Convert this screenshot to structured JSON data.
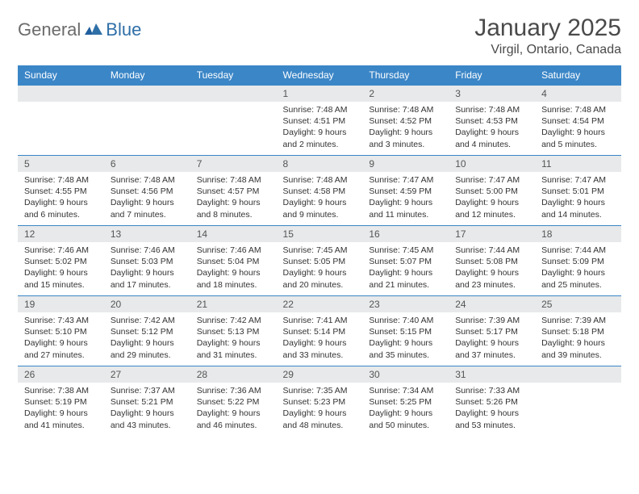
{
  "brand": {
    "part1": "General",
    "part2": "Blue"
  },
  "title": "January 2025",
  "location": "Virgil, Ontario, Canada",
  "colors": {
    "header_bg": "#3b86c7",
    "header_text": "#ffffff",
    "daynum_bg": "#e7e9ea",
    "rule": "#3b86c7",
    "logo_gray": "#6b6b6b",
    "logo_blue": "#2f6fa7"
  },
  "typography": {
    "title_fontsize": 30,
    "location_fontsize": 16,
    "header_fontsize": 12,
    "daynum_fontsize": 12,
    "cell_fontsize": 10.5
  },
  "day_headers": [
    "Sunday",
    "Monday",
    "Tuesday",
    "Wednesday",
    "Thursday",
    "Friday",
    "Saturday"
  ],
  "weeks": [
    [
      null,
      null,
      null,
      {
        "n": "1",
        "sr": "7:48 AM",
        "ss": "4:51 PM",
        "dl": "9 hours and 2 minutes."
      },
      {
        "n": "2",
        "sr": "7:48 AM",
        "ss": "4:52 PM",
        "dl": "9 hours and 3 minutes."
      },
      {
        "n": "3",
        "sr": "7:48 AM",
        "ss": "4:53 PM",
        "dl": "9 hours and 4 minutes."
      },
      {
        "n": "4",
        "sr": "7:48 AM",
        "ss": "4:54 PM",
        "dl": "9 hours and 5 minutes."
      }
    ],
    [
      {
        "n": "5",
        "sr": "7:48 AM",
        "ss": "4:55 PM",
        "dl": "9 hours and 6 minutes."
      },
      {
        "n": "6",
        "sr": "7:48 AM",
        "ss": "4:56 PM",
        "dl": "9 hours and 7 minutes."
      },
      {
        "n": "7",
        "sr": "7:48 AM",
        "ss": "4:57 PM",
        "dl": "9 hours and 8 minutes."
      },
      {
        "n": "8",
        "sr": "7:48 AM",
        "ss": "4:58 PM",
        "dl": "9 hours and 9 minutes."
      },
      {
        "n": "9",
        "sr": "7:47 AM",
        "ss": "4:59 PM",
        "dl": "9 hours and 11 minutes."
      },
      {
        "n": "10",
        "sr": "7:47 AM",
        "ss": "5:00 PM",
        "dl": "9 hours and 12 minutes."
      },
      {
        "n": "11",
        "sr": "7:47 AM",
        "ss": "5:01 PM",
        "dl": "9 hours and 14 minutes."
      }
    ],
    [
      {
        "n": "12",
        "sr": "7:46 AM",
        "ss": "5:02 PM",
        "dl": "9 hours and 15 minutes."
      },
      {
        "n": "13",
        "sr": "7:46 AM",
        "ss": "5:03 PM",
        "dl": "9 hours and 17 minutes."
      },
      {
        "n": "14",
        "sr": "7:46 AM",
        "ss": "5:04 PM",
        "dl": "9 hours and 18 minutes."
      },
      {
        "n": "15",
        "sr": "7:45 AM",
        "ss": "5:05 PM",
        "dl": "9 hours and 20 minutes."
      },
      {
        "n": "16",
        "sr": "7:45 AM",
        "ss": "5:07 PM",
        "dl": "9 hours and 21 minutes."
      },
      {
        "n": "17",
        "sr": "7:44 AM",
        "ss": "5:08 PM",
        "dl": "9 hours and 23 minutes."
      },
      {
        "n": "18",
        "sr": "7:44 AM",
        "ss": "5:09 PM",
        "dl": "9 hours and 25 minutes."
      }
    ],
    [
      {
        "n": "19",
        "sr": "7:43 AM",
        "ss": "5:10 PM",
        "dl": "9 hours and 27 minutes."
      },
      {
        "n": "20",
        "sr": "7:42 AM",
        "ss": "5:12 PM",
        "dl": "9 hours and 29 minutes."
      },
      {
        "n": "21",
        "sr": "7:42 AM",
        "ss": "5:13 PM",
        "dl": "9 hours and 31 minutes."
      },
      {
        "n": "22",
        "sr": "7:41 AM",
        "ss": "5:14 PM",
        "dl": "9 hours and 33 minutes."
      },
      {
        "n": "23",
        "sr": "7:40 AM",
        "ss": "5:15 PM",
        "dl": "9 hours and 35 minutes."
      },
      {
        "n": "24",
        "sr": "7:39 AM",
        "ss": "5:17 PM",
        "dl": "9 hours and 37 minutes."
      },
      {
        "n": "25",
        "sr": "7:39 AM",
        "ss": "5:18 PM",
        "dl": "9 hours and 39 minutes."
      }
    ],
    [
      {
        "n": "26",
        "sr": "7:38 AM",
        "ss": "5:19 PM",
        "dl": "9 hours and 41 minutes."
      },
      {
        "n": "27",
        "sr": "7:37 AM",
        "ss": "5:21 PM",
        "dl": "9 hours and 43 minutes."
      },
      {
        "n": "28",
        "sr": "7:36 AM",
        "ss": "5:22 PM",
        "dl": "9 hours and 46 minutes."
      },
      {
        "n": "29",
        "sr": "7:35 AM",
        "ss": "5:23 PM",
        "dl": "9 hours and 48 minutes."
      },
      {
        "n": "30",
        "sr": "7:34 AM",
        "ss": "5:25 PM",
        "dl": "9 hours and 50 minutes."
      },
      {
        "n": "31",
        "sr": "7:33 AM",
        "ss": "5:26 PM",
        "dl": "9 hours and 53 minutes."
      },
      null
    ]
  ],
  "labels": {
    "sunrise": "Sunrise:",
    "sunset": "Sunset:",
    "daylight": "Daylight:"
  }
}
